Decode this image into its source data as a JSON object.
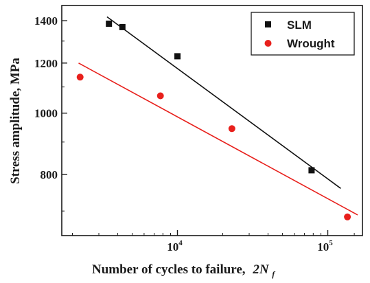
{
  "chart_data": {
    "type": "scatter",
    "title": "",
    "xlabel": "Number of cycles to failure,",
    "xlabel_math": "2N",
    "xlabel_math_sub": "f",
    "ylabel": "Stress amplitude, MPa",
    "x_scale": "log",
    "y_scale": "log",
    "xlim": [
      1700,
      170000
    ],
    "ylim": [
      640,
      1480
    ],
    "x_ticks": [
      {
        "value": 10000,
        "base": "10",
        "exp": "4"
      },
      {
        "value": 100000,
        "base": "10",
        "exp": "5"
      }
    ],
    "y_ticks": [
      {
        "value": 800,
        "label": "800"
      },
      {
        "value": 1000,
        "label": "1000"
      },
      {
        "value": 1200,
        "label": "1200"
      },
      {
        "value": 1400,
        "label": "1400"
      }
    ],
    "legend": {
      "position": "top-right"
    },
    "series": [
      {
        "name": "SLM",
        "color": "#111111",
        "marker": "square",
        "points": [
          {
            "x": 3500,
            "y": 1385
          },
          {
            "x": 4300,
            "y": 1368
          },
          {
            "x": 10000,
            "y": 1230
          },
          {
            "x": 78000,
            "y": 812
          }
        ],
        "fit": {
          "x": [
            3400,
            122000
          ],
          "y": [
            1420,
            760
          ]
        }
      },
      {
        "name": "Wrought",
        "color": "#e8201c",
        "marker": "circle",
        "points": [
          {
            "x": 2250,
            "y": 1140
          },
          {
            "x": 7700,
            "y": 1065
          },
          {
            "x": 23000,
            "y": 945
          },
          {
            "x": 135000,
            "y": 685
          }
        ],
        "fit": {
          "x": [
            2200,
            158000
          ],
          "y": [
            1200,
            690
          ]
        }
      }
    ]
  }
}
